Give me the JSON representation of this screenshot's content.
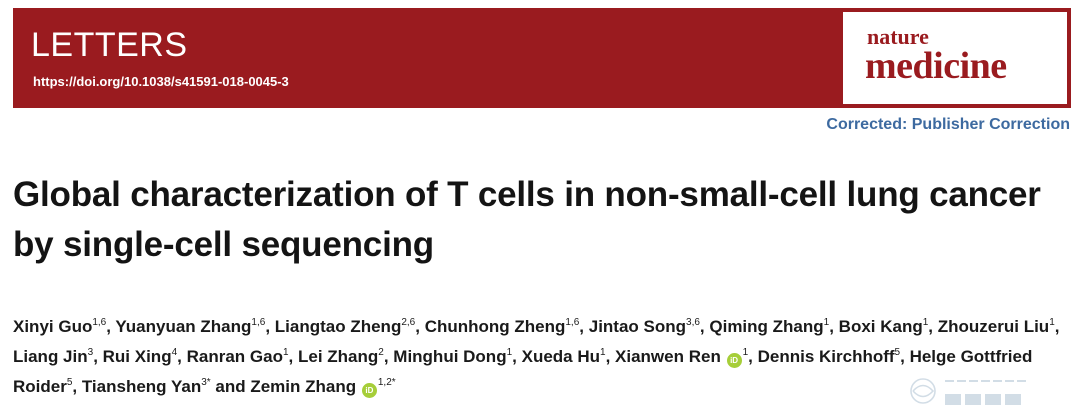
{
  "banner": {
    "section_label": "LETTERS",
    "doi": "https://doi.org/10.1038/s41591-018-0045-3",
    "logo_line1": "nature",
    "logo_line2": "medicine",
    "background_color": "#9a1b1f"
  },
  "correction_notice": "Corrected: Publisher Correction",
  "title": "Global characterization of T cells in non-small-cell lung cancer by single-cell sequencing",
  "authors": [
    {
      "name": "Xinyi Guo",
      "sup": "1,6"
    },
    {
      "name": "Yuanyuan Zhang",
      "sup": "1,6"
    },
    {
      "name": "Liangtao Zheng",
      "sup": "2,6"
    },
    {
      "name": "Chunhong Zheng",
      "sup": "1,6"
    },
    {
      "name": "Jintao Song",
      "sup": "3,6"
    },
    {
      "name": "Qiming Zhang",
      "sup": "1"
    },
    {
      "name": "Boxi Kang",
      "sup": "1"
    },
    {
      "name": "Zhouzerui Liu",
      "sup": "1"
    },
    {
      "name": "Liang Jin",
      "sup": "3"
    },
    {
      "name": "Rui Xing",
      "sup": "4"
    },
    {
      "name": "Ranran Gao",
      "sup": "1"
    },
    {
      "name": "Lei Zhang",
      "sup": "2"
    },
    {
      "name": "Minghui Dong",
      "sup": "1"
    },
    {
      "name": "Xueda Hu",
      "sup": "1"
    },
    {
      "name": "Xianwen Ren",
      "sup": "1",
      "orcid": true
    },
    {
      "name": "Dennis Kirchhoff",
      "sup": "5"
    },
    {
      "name": "Helge Gottfried Roider",
      "sup": "5"
    },
    {
      "name": "Tiansheng Yan",
      "sup": "3*"
    },
    {
      "name": "Zemin Zhang",
      "sup": "1,2*",
      "orcid": true,
      "joiner": " and "
    }
  ],
  "orcid_icon_label": "iD",
  "watermark": {
    "text_latin": "GENESKY",
    "text_cjk": "天昊生物"
  }
}
